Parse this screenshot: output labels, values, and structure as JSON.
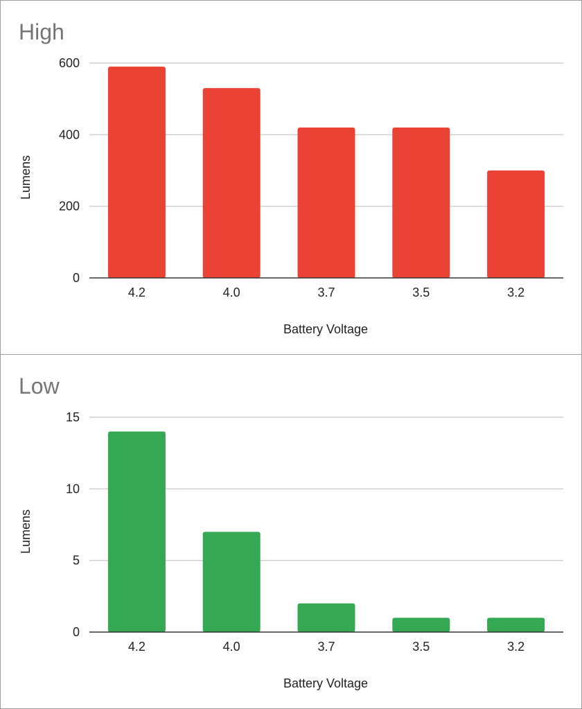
{
  "chart_data": [
    {
      "type": "bar",
      "title": "High",
      "xlabel": "Battery Voltage",
      "ylabel": "Lumens",
      "categories": [
        "4.2",
        "4.0",
        "3.7",
        "3.5",
        "3.2"
      ],
      "values": [
        590,
        530,
        420,
        420,
        300
      ],
      "ylim": [
        0,
        600
      ],
      "yticks": [
        0,
        200,
        400,
        600
      ],
      "grid": true,
      "color": "#ea4335"
    },
    {
      "type": "bar",
      "title": "Low",
      "xlabel": "Battery Voltage",
      "ylabel": "Lumens",
      "categories": [
        "4.2",
        "4.0",
        "3.7",
        "3.5",
        "3.2"
      ],
      "values": [
        14,
        7,
        2,
        1,
        1
      ],
      "ylim": [
        0,
        15
      ],
      "yticks": [
        0,
        5,
        10,
        15
      ],
      "grid": true,
      "color": "#34a853"
    }
  ]
}
